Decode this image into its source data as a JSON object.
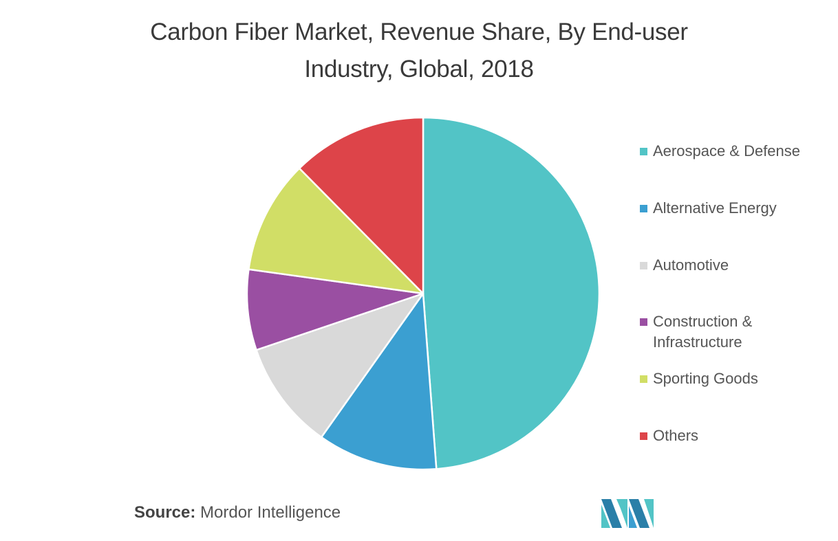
{
  "title_lines": [
    "Carbon Fiber Market, Revenue Share, By End-user",
    "Industry, Global, 2018"
  ],
  "source": {
    "label": "Source:",
    "text": "Mordor Intelligence"
  },
  "logo_icon": "mordor-intelligence-logo-icon",
  "chart_data": {
    "type": "pie",
    "title": "Carbon Fiber Market, Revenue Share, By End-user Industry, Global, 2018",
    "legend_position": "right",
    "start_angle_deg": 0,
    "direction": "clockwise",
    "slices": [
      {
        "label": "Aerospace & Defense",
        "value": 48.8,
        "color": "#52c4c6"
      },
      {
        "label": "Alternative Energy",
        "value": 11.0,
        "color": "#3b9fd1"
      },
      {
        "label": "Automotive",
        "value": 10.0,
        "color": "#d9d9d9"
      },
      {
        "label": "Construction & Infrastructure",
        "value": 7.4,
        "color": "#9a4fa2"
      },
      {
        "label": "Sporting Goods",
        "value": 10.4,
        "color": "#d1de66"
      },
      {
        "label": "Others",
        "value": 12.4,
        "color": "#dd4449"
      }
    ]
  },
  "legend": [
    {
      "lines": [
        "Aerospace & Defense"
      ],
      "color": "#52c4c6"
    },
    {
      "lines": [
        "Alternative Energy"
      ],
      "color": "#3b9fd1"
    },
    {
      "lines": [
        "Automotive"
      ],
      "color": "#d9d9d9"
    },
    {
      "lines": [
        "Construction &",
        "Infrastructure"
      ],
      "color": "#9a4fa2"
    },
    {
      "lines": [
        "Sporting Goods"
      ],
      "color": "#d1de66"
    },
    {
      "lines": [
        "Others"
      ],
      "color": "#dd4449"
    }
  ]
}
